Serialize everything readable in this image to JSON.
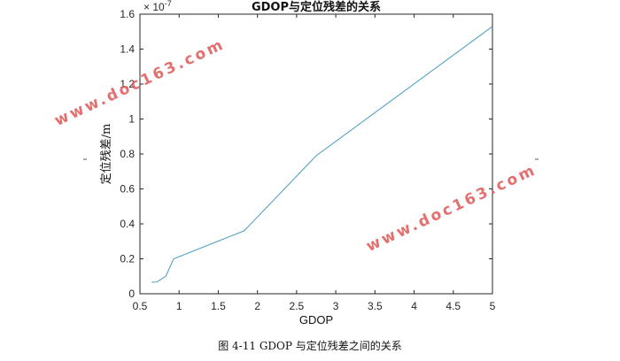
{
  "chart_data": {
    "type": "line",
    "title": "GDOP与定位残差的关系",
    "xlabel": "GDOP",
    "ylabel": "定位残差/m",
    "y_exponent_label": "× 10^-7",
    "xlim": [
      0.5,
      5
    ],
    "ylim": [
      0,
      1.6
    ],
    "x_ticks": [
      0.5,
      1,
      1.5,
      2,
      2.5,
      3,
      3.5,
      4,
      4.5,
      5
    ],
    "x_tick_labels": [
      "0.5",
      "1",
      "1.5",
      "2",
      "2.5",
      "3",
      "3.5",
      "4",
      "4.5",
      "5"
    ],
    "y_ticks": [
      0,
      0.2,
      0.4,
      0.6,
      0.8,
      1.0,
      1.2,
      1.4,
      1.6
    ],
    "y_tick_labels": [
      "0",
      "0.2",
      "0.4",
      "0.6",
      "0.8",
      "1",
      "1.2",
      "1.4",
      "1.6"
    ],
    "grid": false,
    "series": [
      {
        "color": "#4a9bc2",
        "x": [
          0.65,
          0.72,
          0.83,
          0.93,
          1.83,
          2.75,
          5.0
        ],
        "y": [
          0.065,
          0.068,
          0.1,
          0.2,
          0.36,
          0.79,
          1.53
        ]
      }
    ]
  },
  "watermarks": [
    "www.doc163.com",
    "www.doc163.com"
  ],
  "caption": "图 4-11 GDOP 与定位残差之间的关系"
}
